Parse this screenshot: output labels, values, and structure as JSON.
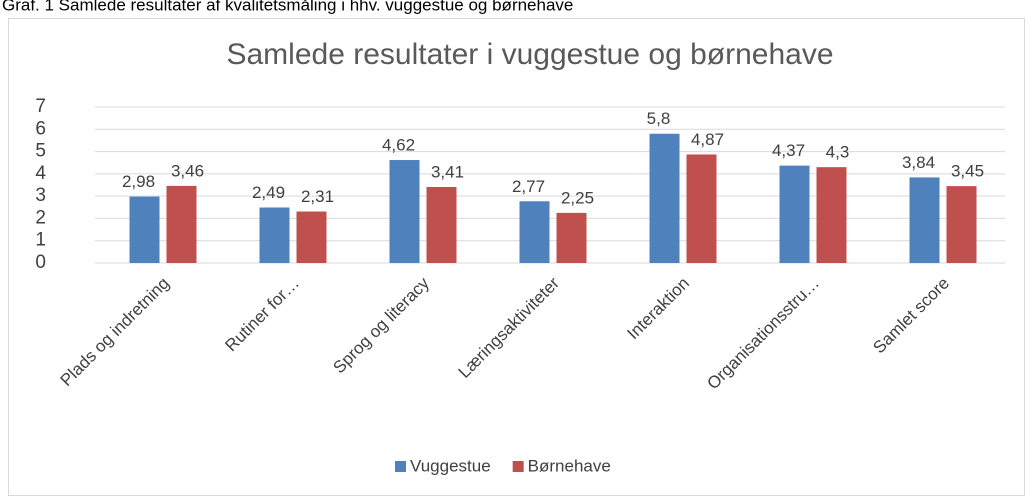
{
  "caption": "Graf. 1 Samlede resultater af kvalitetsmåling i hhv. vuggestue og børnehave",
  "chart_data": {
    "type": "bar",
    "title": "Samlede resultater i vuggestue og børnehave",
    "categories": [
      "Plads og indretning",
      "Rutiner for…",
      "Sprog og literacy",
      "Læringsaktiviteter",
      "Interaktion",
      "Organisationsstru…",
      "Samlet score"
    ],
    "series": [
      {
        "name": "Vuggestue",
        "color": "#4f81bd",
        "values": [
          2.98,
          2.49,
          4.62,
          2.77,
          5.8,
          4.37,
          3.84
        ],
        "value_labels": [
          "2,98",
          "2,49",
          "4,62",
          "2,77",
          "5,8",
          "4,37",
          "3,84"
        ]
      },
      {
        "name": "Børnehave",
        "color": "#c0504d",
        "values": [
          3.46,
          2.31,
          3.41,
          2.25,
          4.87,
          4.3,
          3.45
        ],
        "value_labels": [
          "3,46",
          "2,31",
          "3,41",
          "2,25",
          "4,87",
          "4,3",
          "3,45"
        ]
      }
    ],
    "ylim": [
      0,
      7
    ],
    "yticks": [
      0,
      1,
      2,
      3,
      4,
      5,
      6,
      7
    ],
    "grid": true,
    "legend": "bottom"
  }
}
